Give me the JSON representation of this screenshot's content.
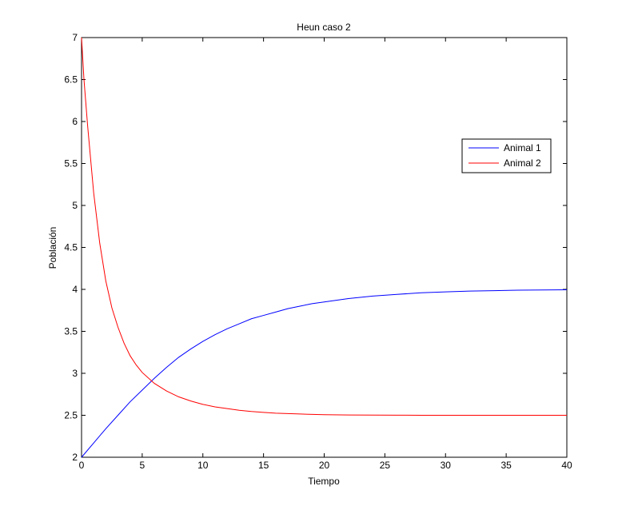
{
  "chart_data": {
    "type": "line",
    "title": "Heun caso 2",
    "xlabel": "Tiempo",
    "ylabel": "Población",
    "xlim": [
      0,
      40
    ],
    "ylim": [
      2,
      7
    ],
    "xticks": [
      0,
      5,
      10,
      15,
      20,
      25,
      30,
      35,
      40
    ],
    "xtick_labels": [
      "0",
      "5",
      "10",
      "15",
      "20",
      "25",
      "30",
      "35",
      "40"
    ],
    "yticks": [
      2,
      2.5,
      3,
      3.5,
      4,
      4.5,
      5,
      5.5,
      6,
      6.5,
      7
    ],
    "ytick_labels": [
      "2",
      "2.5",
      "3",
      "3.5",
      "4",
      "4.5",
      "5",
      "5.5",
      "6",
      "6.5",
      "7"
    ],
    "grid": false,
    "legend_position": "top-right",
    "series": [
      {
        "name": "Animal 1",
        "color": "#0000ff",
        "x": [
          0,
          1,
          2,
          3,
          4,
          5,
          6,
          7,
          8,
          9,
          10,
          11,
          12,
          13,
          14,
          15,
          16,
          17,
          18,
          19,
          20,
          22,
          24,
          26,
          28,
          30,
          32,
          34,
          36,
          38,
          40
        ],
        "y": [
          2.0,
          2.17,
          2.34,
          2.5,
          2.66,
          2.8,
          2.94,
          3.07,
          3.19,
          3.29,
          3.38,
          3.46,
          3.53,
          3.59,
          3.65,
          3.69,
          3.73,
          3.77,
          3.8,
          3.83,
          3.85,
          3.89,
          3.92,
          3.94,
          3.96,
          3.97,
          3.98,
          3.985,
          3.99,
          3.993,
          3.995
        ]
      },
      {
        "name": "Animal 2",
        "color": "#ff0000",
        "x": [
          0,
          0.2,
          0.5,
          1,
          1.5,
          2,
          2.5,
          3,
          3.5,
          4,
          4.5,
          5,
          6,
          7,
          8,
          9,
          10,
          11,
          12,
          13,
          14,
          15,
          16,
          18,
          20,
          22,
          24,
          26,
          28,
          30,
          35,
          40
        ],
        "y": [
          7.0,
          6.5,
          5.95,
          5.15,
          4.55,
          4.1,
          3.78,
          3.55,
          3.36,
          3.21,
          3.1,
          3.01,
          2.88,
          2.79,
          2.72,
          2.67,
          2.63,
          2.6,
          2.58,
          2.56,
          2.545,
          2.535,
          2.525,
          2.515,
          2.507,
          2.503,
          2.502,
          2.501,
          2.5,
          2.5,
          2.5,
          2.5
        ]
      }
    ]
  }
}
